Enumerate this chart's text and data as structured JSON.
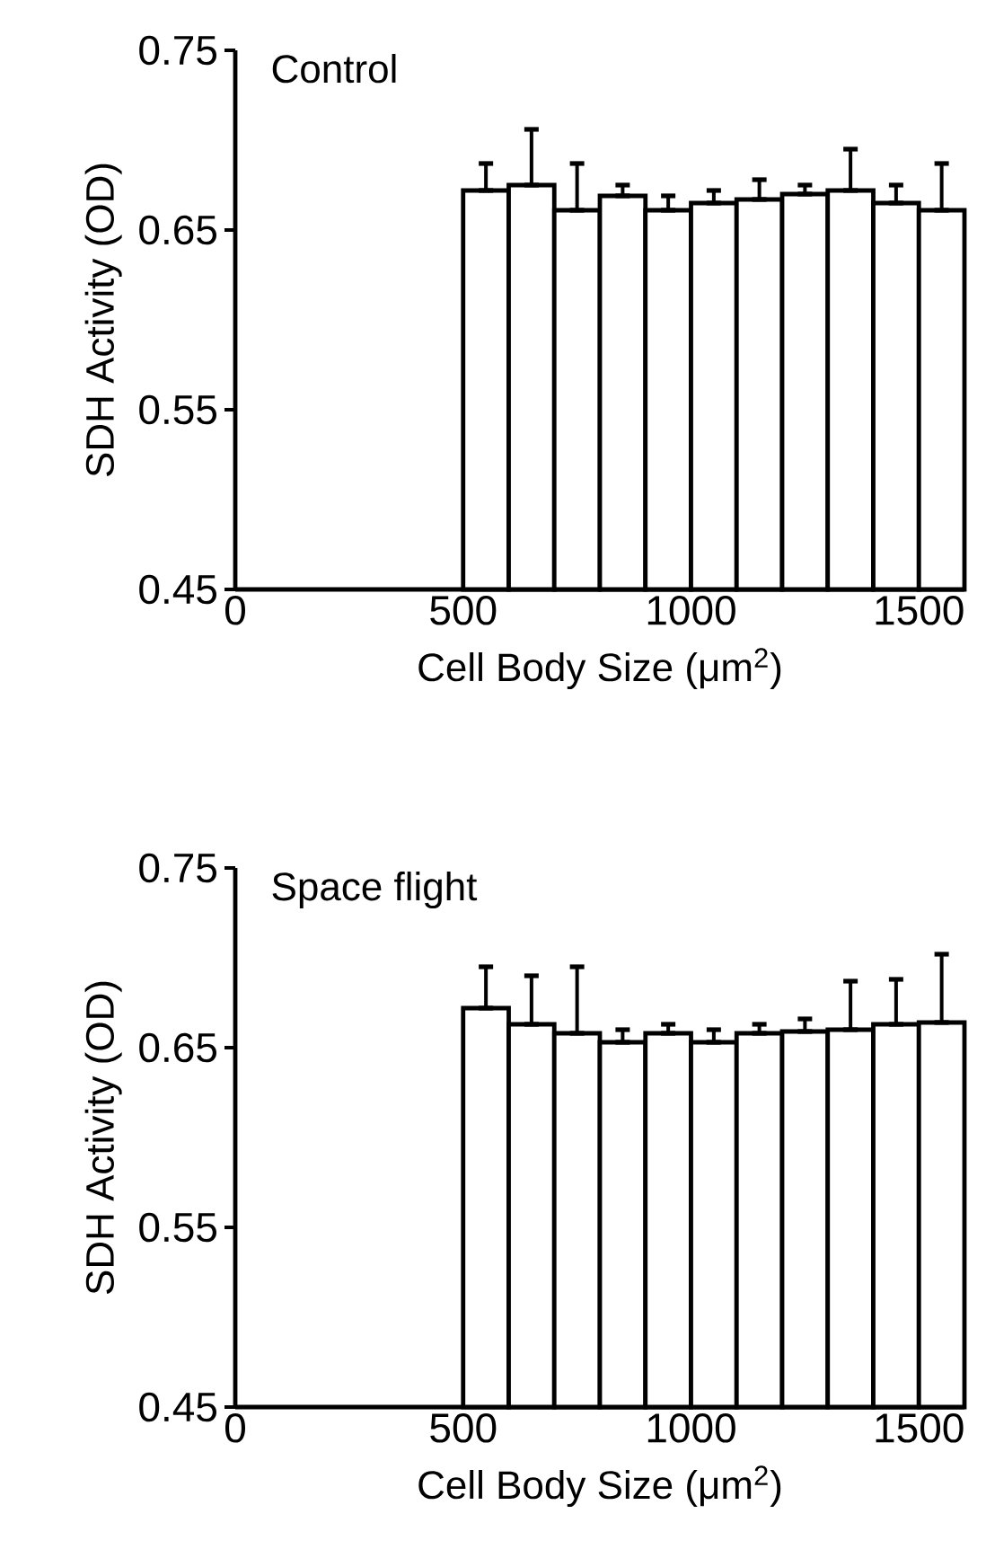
{
  "chart_data": [
    {
      "type": "histogram",
      "title": "Control",
      "xlabel": "Cell Body Size (μm$^{2}$)",
      "ylabel": "SDH Activity (OD)",
      "color": "#ffffff",
      "bins": [
        500,
        600,
        700,
        800,
        900,
        1000,
        1100,
        1200,
        1300,
        1400,
        1500,
        1600
      ],
      "values": [
        0.672,
        0.675,
        0.661,
        0.669,
        0.661,
        0.665,
        0.667,
        0.67,
        0.672,
        0.665,
        0.661
      ],
      "errors": [
        [
          0.672,
          0.687
        ],
        [
          0.675,
          0.706
        ],
        [
          0.661,
          0.687
        ],
        [
          0.669,
          0.675
        ],
        [
          0.661,
          0.669
        ],
        [
          0.665,
          0.672
        ],
        [
          0.667,
          0.678
        ],
        [
          0.67,
          0.675
        ],
        [
          0.672,
          0.695
        ],
        [
          0.665,
          0.675
        ],
        [
          0.661,
          0.687
        ]
      ],
      "xlim": [
        0,
        1600
      ],
      "xticks": [
        0,
        500,
        1000,
        1500
      ],
      "ylim": [
        0.45,
        0.75
      ],
      "yticks": [
        0.45,
        0.55,
        0.65,
        0.75
      ]
    },
    {
      "type": "histogram",
      "title": "Space flight",
      "xlabel": "Cell Body Size (μm$^{2}$)",
      "ylabel": "SDH Activity (OD)",
      "color": "#ffffff",
      "bins": [
        500,
        600,
        700,
        800,
        900,
        1000,
        1100,
        1200,
        1300,
        1400,
        1500,
        1600
      ],
      "values": [
        0.672,
        0.663,
        0.658,
        0.653,
        0.658,
        0.653,
        0.658,
        0.659,
        0.66,
        0.663,
        0.664
      ],
      "errors": [
        [
          0.672,
          0.695
        ],
        [
          0.663,
          0.69
        ],
        [
          0.658,
          0.695
        ],
        [
          0.653,
          0.66
        ],
        [
          0.658,
          0.663
        ],
        [
          0.653,
          0.66
        ],
        [
          0.658,
          0.663
        ],
        [
          0.659,
          0.666
        ],
        [
          0.66,
          0.687
        ],
        [
          0.663,
          0.688
        ],
        [
          0.664,
          0.702
        ]
      ],
      "xlim": [
        0,
        1600
      ],
      "xticks": [
        0,
        500,
        1000,
        1500
      ],
      "ylim": [
        0.45,
        0.75
      ],
      "yticks": [
        0.45,
        0.55,
        0.65,
        0.75
      ]
    }
  ]
}
